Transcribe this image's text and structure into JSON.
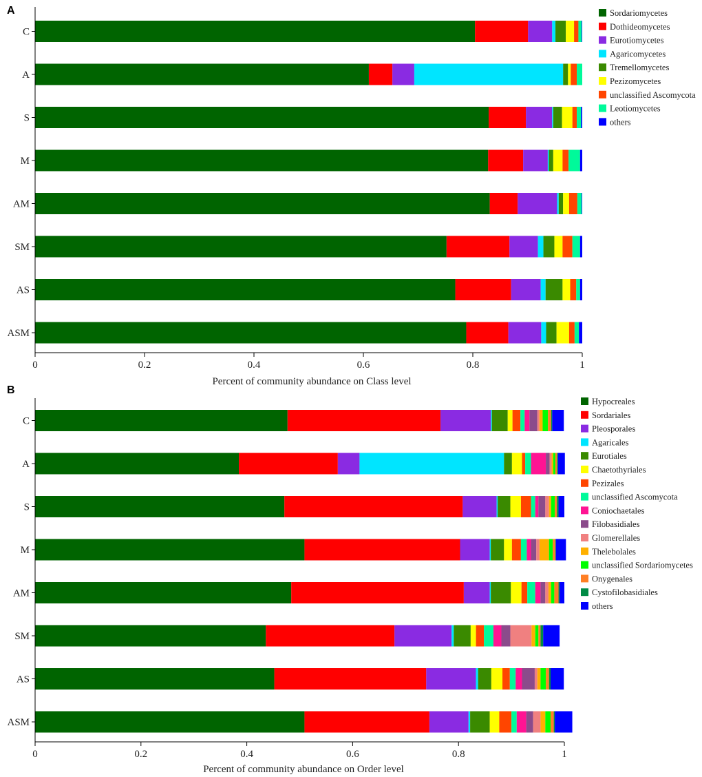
{
  "chart_data": [
    {
      "panel": "A",
      "type": "bar",
      "orientation": "horizontal",
      "stacked": true,
      "xlabel": "Percent of community abundance on Class level",
      "xlim": [
        0,
        1
      ],
      "xticks": [
        "0",
        "0.2",
        "0.4",
        "0.6",
        "0.8",
        "1"
      ],
      "categories": [
        "C",
        "A",
        "S",
        "M",
        "AM",
        "SM",
        "AS",
        "ASM"
      ],
      "legend_position": "right",
      "series": [
        {
          "name": "Sordariomycetes",
          "color": "#006400",
          "values": [
            0.804,
            0.61,
            0.829,
            0.828,
            0.831,
            0.752,
            0.768,
            0.788
          ]
        },
        {
          "name": "Dothideomycetes",
          "color": "#FF0000",
          "values": [
            0.097,
            0.043,
            0.068,
            0.064,
            0.051,
            0.115,
            0.102,
            0.077
          ]
        },
        {
          "name": "Eurotiomycetes",
          "color": "#8A2BE2",
          "values": [
            0.044,
            0.04,
            0.048,
            0.045,
            0.072,
            0.052,
            0.054,
            0.06
          ]
        },
        {
          "name": "Agaricomycetes",
          "color": "#00E5FF",
          "values": [
            0.006,
            0.272,
            0.002,
            0.002,
            0.003,
            0.01,
            0.009,
            0.009
          ]
        },
        {
          "name": "Tremellomycetes",
          "color": "#3A8A00",
          "values": [
            0.019,
            0.009,
            0.016,
            0.008,
            0.008,
            0.02,
            0.031,
            0.019
          ]
        },
        {
          "name": "Pezizomycetes",
          "color": "#FFFF00",
          "values": [
            0.015,
            0.005,
            0.019,
            0.017,
            0.011,
            0.015,
            0.014,
            0.023
          ]
        },
        {
          "name": "unclassified Ascomycota",
          "color": "#FF4500",
          "values": [
            0.008,
            0.011,
            0.008,
            0.011,
            0.015,
            0.018,
            0.011,
            0.01
          ]
        },
        {
          "name": "Leotiomycetes",
          "color": "#00FA9A",
          "values": [
            0.006,
            0.01,
            0.008,
            0.021,
            0.008,
            0.014,
            0.007,
            0.008
          ]
        },
        {
          "name": "others",
          "color": "#0000FF",
          "values": [
            0.001,
            0.0,
            0.002,
            0.004,
            0.001,
            0.004,
            0.004,
            0.006
          ]
        }
      ]
    },
    {
      "panel": "B",
      "type": "bar",
      "orientation": "horizontal",
      "stacked": true,
      "xlabel": "Percent of community abundance on Order level",
      "xlim": [
        0,
        1
      ],
      "xticks": [
        "0",
        "0.2",
        "0.4",
        "0.6",
        "0.8",
        "1"
      ],
      "categories": [
        "C",
        "A",
        "S",
        "M",
        "AM",
        "SM",
        "AS",
        "ASM"
      ],
      "legend_position": "right",
      "series": [
        {
          "name": "Hypocreales",
          "color": "#006400",
          "values": [
            0.477,
            0.385,
            0.471,
            0.509,
            0.484,
            0.436,
            0.452,
            0.509
          ]
        },
        {
          "name": "Sordariales",
          "color": "#FF0000",
          "values": [
            0.289,
            0.187,
            0.337,
            0.294,
            0.326,
            0.243,
            0.287,
            0.236
          ]
        },
        {
          "name": "Pleosporales",
          "color": "#8A2BE2",
          "values": [
            0.095,
            0.041,
            0.064,
            0.056,
            0.049,
            0.108,
            0.094,
            0.074
          ]
        },
        {
          "name": "Agaricales",
          "color": "#00E5FF",
          "values": [
            0.002,
            0.273,
            0.002,
            0.002,
            0.002,
            0.004,
            0.004,
            0.003
          ]
        },
        {
          "name": "Eurotiales",
          "color": "#3A8A00",
          "values": [
            0.03,
            0.015,
            0.024,
            0.025,
            0.038,
            0.032,
            0.025,
            0.037
          ]
        },
        {
          "name": "Chaetothyriales",
          "color": "#FFFF00",
          "values": [
            0.009,
            0.019,
            0.02,
            0.015,
            0.02,
            0.01,
            0.021,
            0.018
          ]
        },
        {
          "name": "Pezizales",
          "color": "#FF4500",
          "values": [
            0.015,
            0.006,
            0.019,
            0.017,
            0.011,
            0.015,
            0.014,
            0.023
          ]
        },
        {
          "name": "unclassified Ascomycota",
          "color": "#00FA9A",
          "values": [
            0.008,
            0.011,
            0.008,
            0.011,
            0.015,
            0.018,
            0.011,
            0.01
          ]
        },
        {
          "name": "Coniochaetales",
          "color": "#FF1493",
          "values": [
            0.009,
            0.028,
            0.006,
            0.008,
            0.01,
            0.015,
            0.012,
            0.018
          ]
        },
        {
          "name": "Filobasidiales",
          "color": "#8B4B8B",
          "values": [
            0.015,
            0.007,
            0.013,
            0.01,
            0.009,
            0.017,
            0.024,
            0.013
          ]
        },
        {
          "name": "Glomerellales",
          "color": "#F08080",
          "values": [
            0.004,
            0.004,
            0.007,
            0.006,
            0.006,
            0.04,
            0.005,
            0.014
          ]
        },
        {
          "name": "Thelebolales",
          "color": "#FFB000",
          "values": [
            0.006,
            0.003,
            0.004,
            0.018,
            0.005,
            0.007,
            0.006,
            0.009
          ]
        },
        {
          "name": "unclassified Sordariomycetes",
          "color": "#00FF00",
          "values": [
            0.01,
            0.004,
            0.007,
            0.007,
            0.006,
            0.006,
            0.01,
            0.01
          ]
        },
        {
          "name": "Onygenales",
          "color": "#FF7F24",
          "values": [
            0.006,
            0.003,
            0.004,
            0.005,
            0.008,
            0.004,
            0.006,
            0.006
          ]
        },
        {
          "name": "Cystofilobasidiales",
          "color": "#008B45",
          "values": [
            0.002,
            0.002,
            0.003,
            0.001,
            0.002,
            0.005,
            0.003,
            0.002
          ]
        },
        {
          "name": "others",
          "color": "#0000FF",
          "values": [
            0.022,
            0.013,
            0.011,
            0.019,
            0.009,
            0.031,
            0.025,
            0.033
          ]
        }
      ]
    }
  ]
}
